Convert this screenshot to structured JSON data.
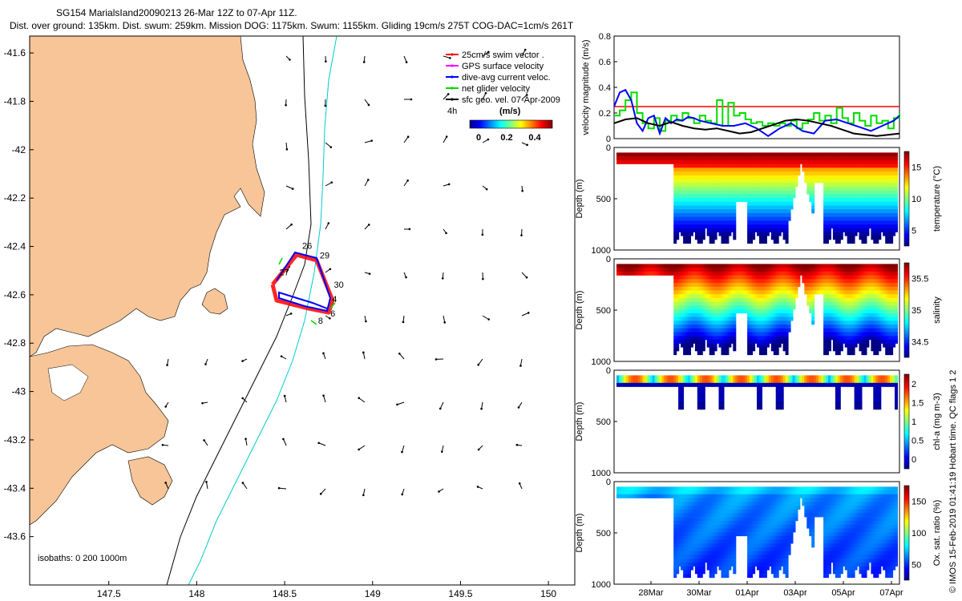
{
  "title": {
    "line1": "SG154 MarialsIand20090213 26-Mar 12Z to 07-Apr 11Z.",
    "line2": "Dist. over ground: 135km. Dist. swum: 259km. Mission DOG: 1175km. Swum: 1155km. Gliding 19cm/s 275T COG-DAC=1cm/s 261T"
  },
  "map": {
    "lat_ticks": [
      "-41.6",
      "-41.8",
      "-42",
      "-42.2",
      "-42.4",
      "-42.6",
      "-42.8",
      "-43",
      "-43.2",
      "-43.4",
      "-43.6"
    ],
    "lon_ticks": [
      "147.5",
      "148",
      "148.5",
      "149",
      "149.5",
      "150"
    ],
    "xlim": [
      147.05,
      150.15
    ],
    "ylim": [
      -43.8,
      -41.53
    ],
    "land_color": "#f7c597",
    "isobaths_text": "isobaths: 0   200   1000m",
    "day_labels": [
      {
        "text": "26",
        "lon": 148.6,
        "lat": -42.41
      },
      {
        "text": "29",
        "lon": 148.7,
        "lat": -42.45
      },
      {
        "text": "30",
        "lon": 148.78,
        "lat": -42.57
      },
      {
        "text": "4",
        "lon": 148.77,
        "lat": -42.63
      },
      {
        "text": "27",
        "lon": 148.47,
        "lat": -42.52
      },
      {
        "text": "8",
        "lon": 148.69,
        "lat": -42.72
      },
      {
        "text": "6",
        "lon": 148.76,
        "lat": -42.69
      }
    ],
    "legend": [
      {
        "label": "25cm/s swim vector .",
        "color": "#ff0000"
      },
      {
        "label": "GPS surface velocity",
        "color": "#ff00ff"
      },
      {
        "label": "dive-avg current veloc.",
        "color": "#0000ff"
      },
      {
        "label": "net glider velocity",
        "color": "#00dd00"
      },
      {
        "label": "sfc geo. vel. 07-Apr-2009",
        "color": "#000000"
      }
    ],
    "legend_extra": "4h",
    "colorbar_unit": "(m/s)",
    "colorbar_ticks": [
      "0",
      "0.2",
      "0.4"
    ]
  },
  "chart_data": [
    {
      "type": "line",
      "ylabel": "velocity magnitude (m/s)",
      "ylim": [
        0,
        0.8
      ],
      "yticks": [
        "0",
        "0.2",
        "0.4",
        "0.6",
        "0.8"
      ],
      "series": [
        {
          "color": "#ff0000",
          "x": [
            0,
            1
          ],
          "values": [
            0.25,
            0.25
          ]
        },
        {
          "color": "#00dd00",
          "x": [
            0.0,
            0.02,
            0.04,
            0.06,
            0.08,
            0.1,
            0.12,
            0.14,
            0.16,
            0.18,
            0.2,
            0.22,
            0.24,
            0.26,
            0.28,
            0.3,
            0.32,
            0.34,
            0.36,
            0.38,
            0.4,
            0.42,
            0.44,
            0.46,
            0.48,
            0.5,
            0.52,
            0.54,
            0.56,
            0.58,
            0.6,
            0.62,
            0.64,
            0.66,
            0.68,
            0.7,
            0.72,
            0.74,
            0.76,
            0.78,
            0.8,
            0.82,
            0.84,
            0.86,
            0.88,
            0.9,
            0.92,
            0.94,
            0.96,
            0.98,
            1.0
          ],
          "values": [
            0.18,
            0.22,
            0.3,
            0.36,
            0.2,
            0.12,
            0.08,
            0.16,
            0.06,
            0.14,
            0.18,
            0.14,
            0.2,
            0.16,
            0.12,
            0.18,
            0.14,
            0.12,
            0.3,
            0.1,
            0.28,
            0.18,
            0.2,
            0.15,
            0.12,
            0.13,
            0.1,
            0.12,
            0.1,
            0.12,
            0.1,
            0.14,
            0.08,
            0.12,
            0.15,
            0.2,
            0.14,
            0.18,
            0.12,
            0.24,
            0.16,
            0.12,
            0.2,
            0.14,
            0.1,
            0.18,
            0.12,
            0.14,
            0.08,
            0.16,
            0.2
          ]
        },
        {
          "color": "#0000ff",
          "x": [
            0.0,
            0.02,
            0.04,
            0.06,
            0.08,
            0.1,
            0.12,
            0.14,
            0.16,
            0.18,
            0.2,
            0.22,
            0.24,
            0.26,
            0.28,
            0.3,
            0.34,
            0.38,
            0.42,
            0.46,
            0.5,
            0.54,
            0.56,
            0.58,
            0.62,
            0.66,
            0.7,
            0.74,
            0.78,
            0.82,
            0.86,
            0.9,
            0.94,
            0.98,
            1.0
          ],
          "values": [
            0.25,
            0.36,
            0.38,
            0.3,
            0.12,
            0.06,
            0.16,
            0.18,
            0.04,
            0.16,
            0.12,
            0.15,
            0.14,
            0.17,
            0.16,
            0.14,
            0.12,
            0.1,
            0.1,
            0.12,
            0.08,
            0.02,
            0.05,
            0.08,
            0.12,
            0.06,
            0.04,
            0.14,
            0.15,
            0.12,
            0.09,
            0.06,
            0.1,
            0.14,
            0.18
          ]
        },
        {
          "color": "#000000",
          "x": [
            0.0,
            0.04,
            0.08,
            0.12,
            0.16,
            0.2,
            0.24,
            0.28,
            0.32,
            0.36,
            0.4,
            0.44,
            0.48,
            0.52,
            0.56,
            0.6,
            0.64,
            0.68,
            0.72,
            0.76,
            0.8,
            0.84,
            0.88,
            0.92,
            0.96,
            1.0
          ],
          "values": [
            0.12,
            0.15,
            0.16,
            0.12,
            0.1,
            0.13,
            0.1,
            0.08,
            0.07,
            0.08,
            0.06,
            0.04,
            0.05,
            0.08,
            0.11,
            0.14,
            0.15,
            0.14,
            0.12,
            0.1,
            0.07,
            0.04,
            0.03,
            0.02,
            0.03,
            0.04
          ]
        }
      ]
    },
    {
      "type": "heatmap",
      "ylabel": "Depth (m)",
      "ylim": [
        0,
        1000
      ],
      "yticks": [
        "0",
        "500",
        "1000"
      ],
      "colorbar_label": "temperature (°C)",
      "colorbar_ticks": [
        "5",
        "10",
        "15"
      ],
      "variable": "temperature"
    },
    {
      "type": "heatmap",
      "ylabel": "Depth (m)",
      "ylim": [
        0,
        1000
      ],
      "yticks": [
        "0",
        "500",
        "1000"
      ],
      "colorbar_label": "salinity",
      "colorbar_ticks": [
        "34.5",
        "35",
        "35.5"
      ],
      "variable": "salinity"
    },
    {
      "type": "heatmap",
      "ylabel": "Depth (m)",
      "ylim": [
        0,
        1000
      ],
      "yticks": [
        "0",
        "500",
        "1000"
      ],
      "colorbar_label": "chl-a (mg m-3)",
      "colorbar_ticks": [
        "0",
        "0.5",
        "1",
        "1.5",
        "2"
      ],
      "variable": "chl"
    },
    {
      "type": "heatmap",
      "ylabel": "Depth (m)",
      "ylim": [
        0,
        1000
      ],
      "yticks": [
        "0",
        "500",
        "1000"
      ],
      "colorbar_label": "Ox. sat. ratio (%)",
      "colorbar_ticks": [
        "50",
        "100",
        "150"
      ],
      "variable": "oxygen"
    }
  ],
  "time_ticks": [
    "28Mar",
    "30Mar",
    "01Apr",
    "03Apr",
    "05Apr",
    "07Apr"
  ],
  "footer": "© IMOS 15-Feb-2019 01:41:19 Hobart time. QC flags 1  2"
}
